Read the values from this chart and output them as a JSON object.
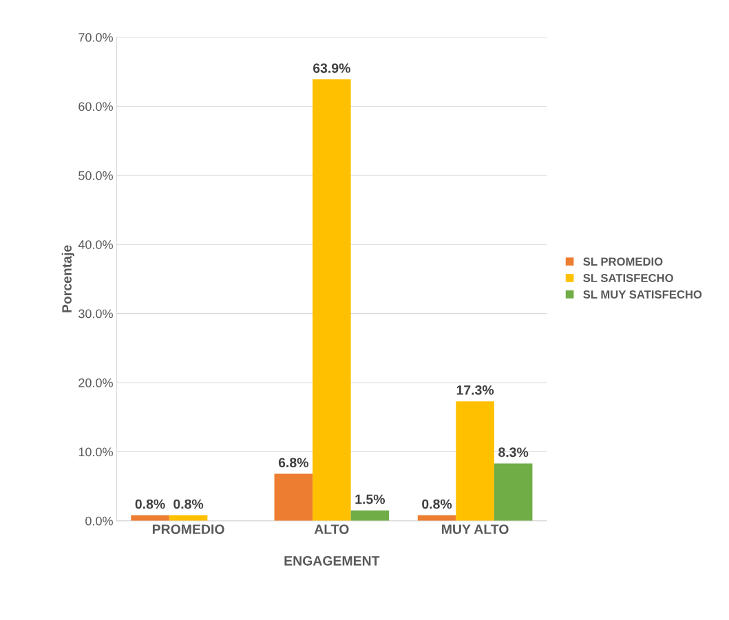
{
  "chart_data": {
    "type": "bar",
    "xlabel": "ENGAGEMENT",
    "ylabel": "Porcentaje",
    "categories": [
      "PROMEDIO",
      "ALTO",
      "MUY ALTO"
    ],
    "series": [
      {
        "name": "SL PROMEDIO",
        "color": "#ed7d31",
        "values": [
          0.8,
          6.8,
          0.8
        ],
        "value_labels": [
          "0.8%",
          "6.8%",
          "0.8%"
        ]
      },
      {
        "name": "SL SATISFECHO",
        "color": "#ffc000",
        "values": [
          0.8,
          63.9,
          17.3
        ],
        "value_labels": [
          "0.8%",
          "63.9%",
          "17.3%"
        ]
      },
      {
        "name": "SL MUY SATISFECHO",
        "color": "#70ad47",
        "values": [
          0,
          1.5,
          8.3
        ],
        "value_labels": [
          null,
          "1.5%",
          "8.3%"
        ]
      }
    ],
    "ylim": [
      0,
      70
    ],
    "yticks": [
      {
        "value": 0,
        "label": "0.0%"
      },
      {
        "value": 10,
        "label": "10.0%"
      },
      {
        "value": 20,
        "label": "20.0%"
      },
      {
        "value": 30,
        "label": "30.0%"
      },
      {
        "value": 40,
        "label": "40.0%"
      },
      {
        "value": 50,
        "label": "50.0%"
      },
      {
        "value": 60,
        "label": "60.0%"
      },
      {
        "value": 70,
        "label": "70.0%"
      }
    ],
    "grid": "y",
    "legend": "right"
  }
}
